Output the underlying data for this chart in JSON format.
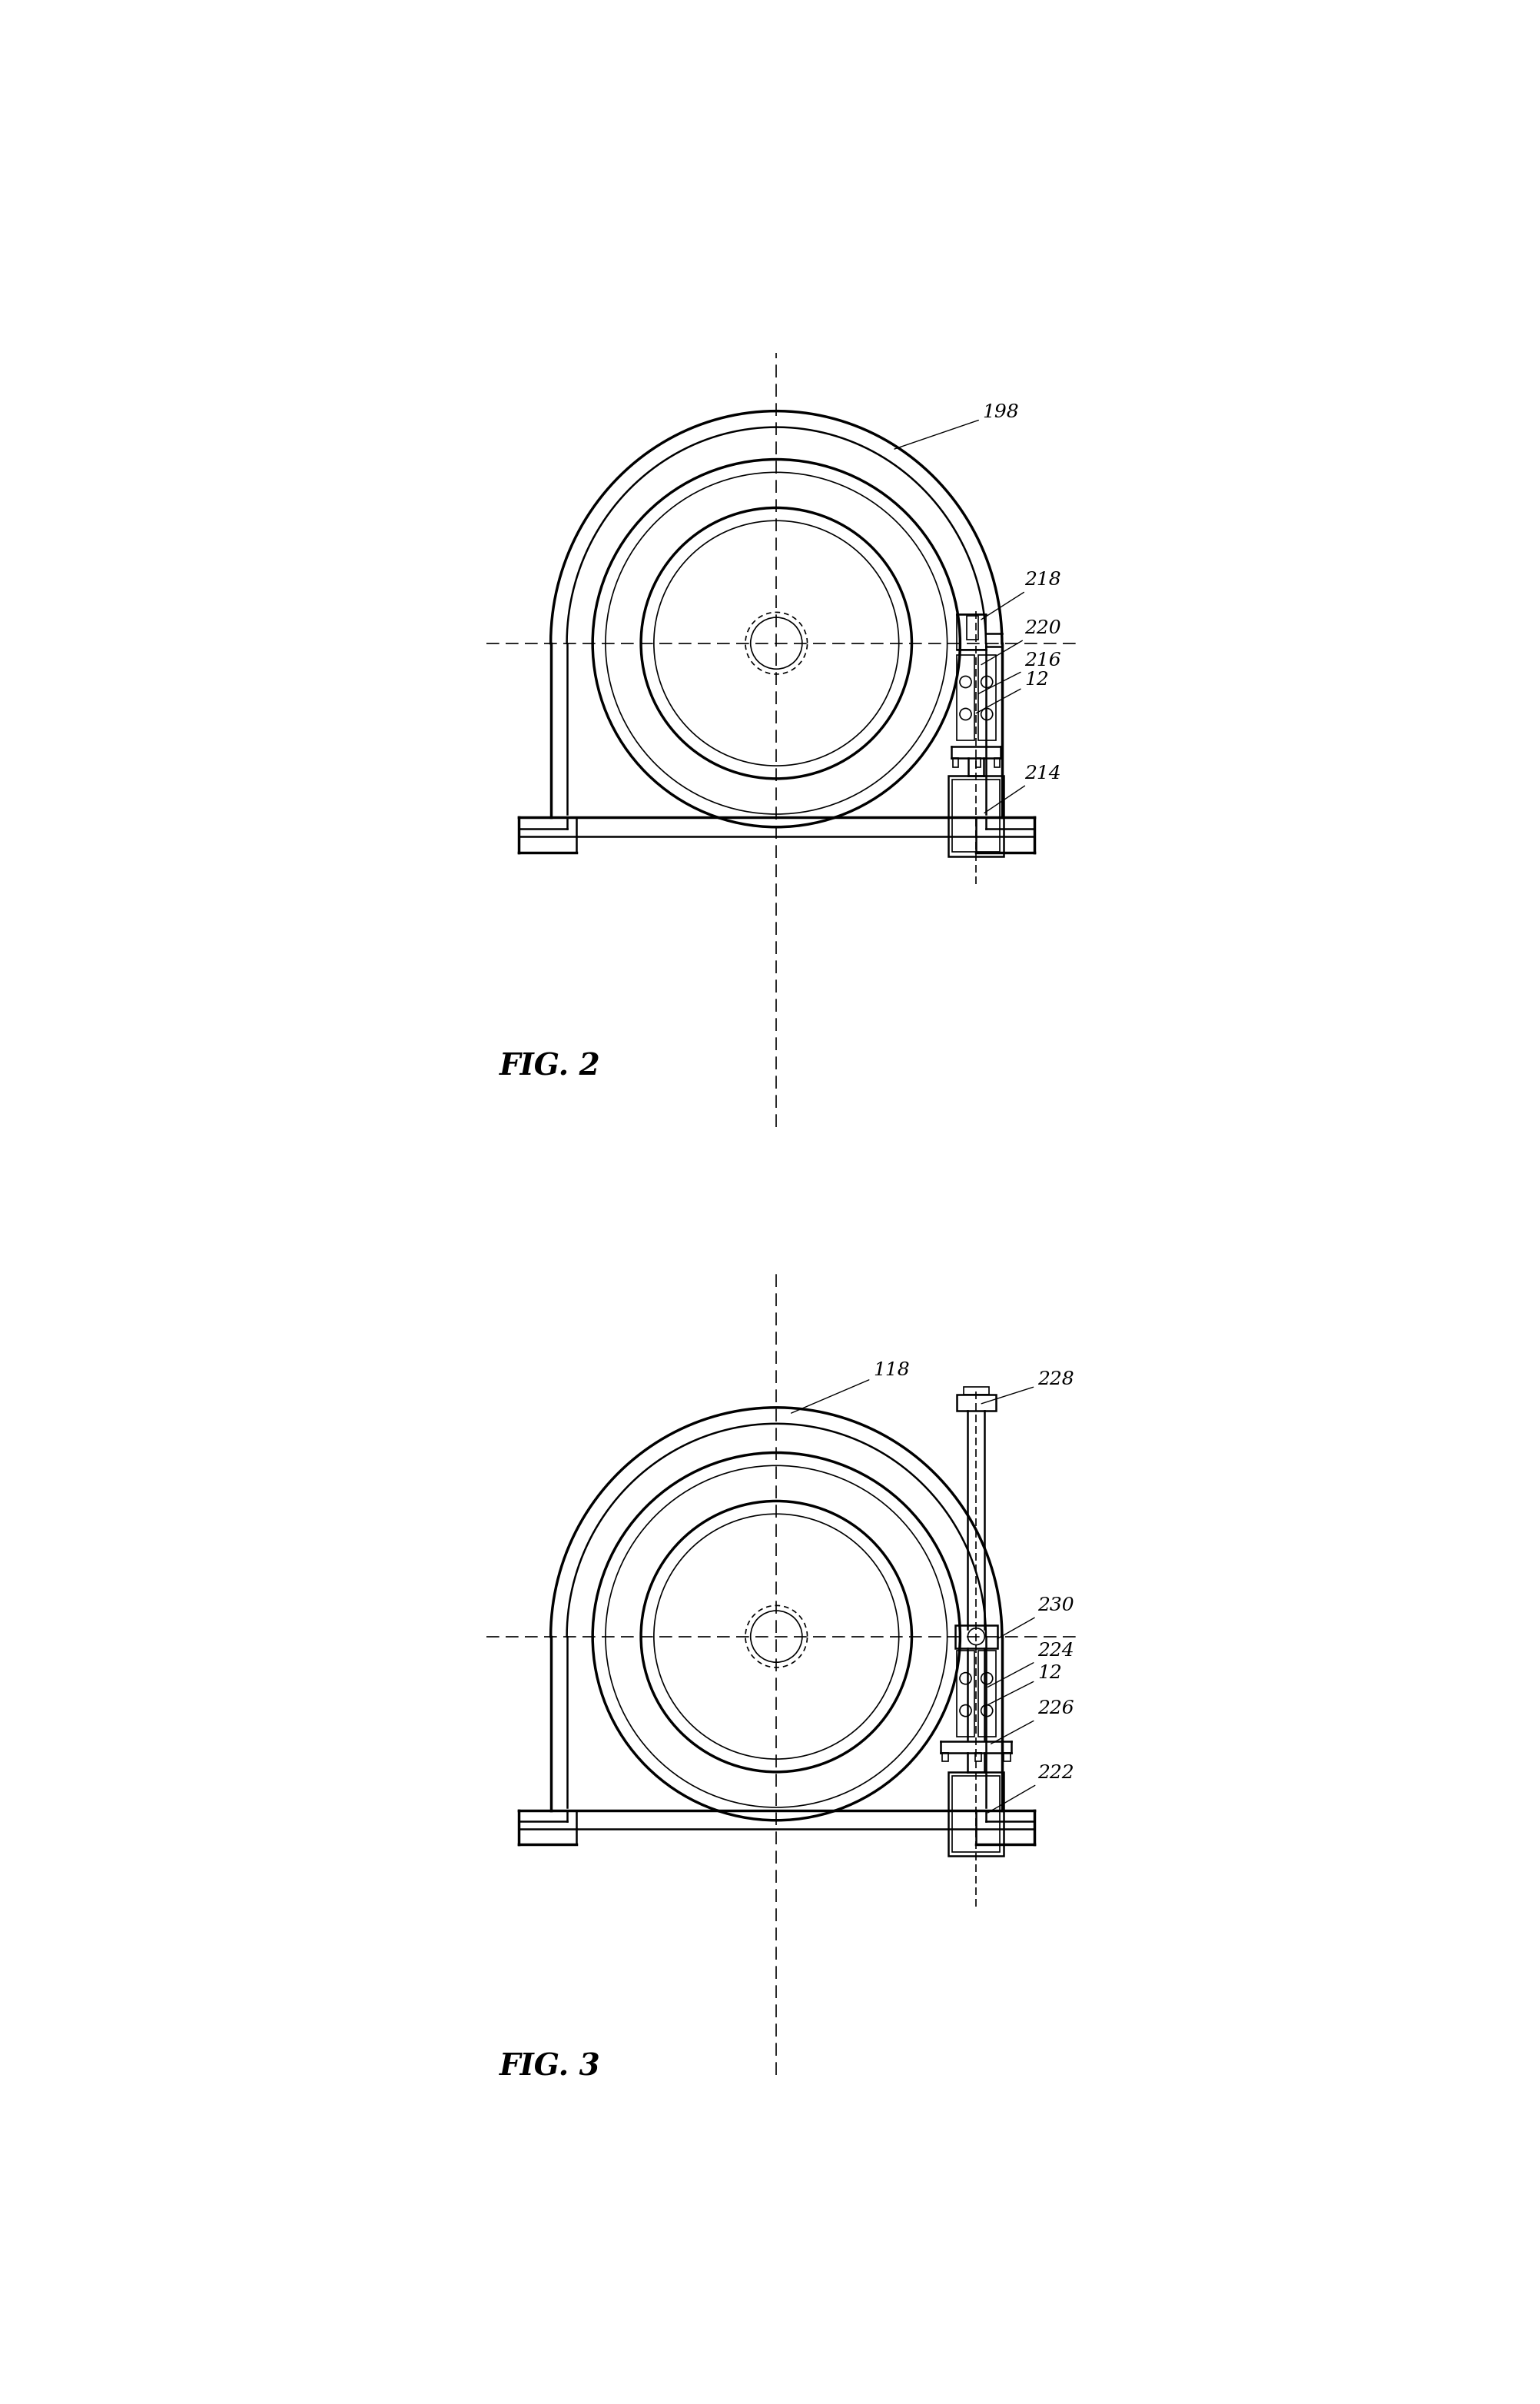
{
  "background_color": "#ffffff",
  "line_color": "#000000",
  "fig_width": 20.04,
  "fig_height": 31.27,
  "fig2_label": "FIG. 2",
  "fig3_label": "FIG. 3"
}
